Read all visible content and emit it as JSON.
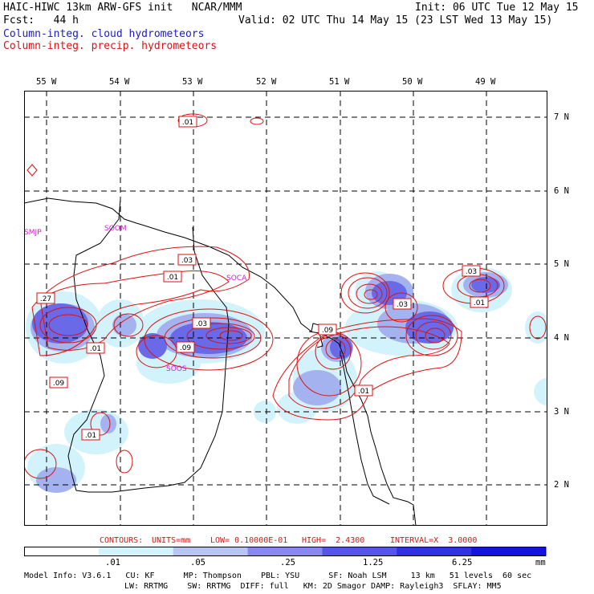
{
  "header": {
    "title_left": "HAIC-HIWC 13km ARW-GFS init   NCAR/MMM",
    "init": "Init: 06 UTC Tue 12 May 15",
    "fcst": "Fcst:   44 h",
    "valid": "Valid: 02 UTC Thu 14 May 15 (23 LST Wed 13 May 15)",
    "field_cloud": "Column-integ. cloud hydrometeors",
    "field_precip": "Column-integ. precip. hydrometeors"
  },
  "map": {
    "lon_labels": [
      "55 W",
      "54 W",
      "53 W",
      "52 W",
      "51 W",
      "50 W",
      "49 W"
    ],
    "lat_labels": [
      "7 N",
      "6 N",
      "5 N",
      "4 N",
      "3 N",
      "2 N"
    ],
    "stations": [
      "SMJP",
      "SOOM",
      "SOCA",
      "SOOS"
    ],
    "contour_labels": [
      ".01",
      ".03",
      ".01",
      ".27",
      ".03",
      ".09",
      ".01",
      ".09",
      ".01",
      ".09",
      ".03",
      ".01",
      ".03",
      ".01",
      ".01"
    ]
  },
  "contour_info": {
    "contours": "CONTOURS:",
    "units": "UNITS=mm",
    "low": "LOW= 0.10000E-01",
    "high": "HIGH=  2.4300",
    "interval": "INTERVAL=X  3.0000"
  },
  "colorbar": {
    "ticks": [
      ".01",
      ".05",
      ".25",
      "1.25",
      "6.25"
    ],
    "unit": "mm",
    "colors": [
      "#ffffff",
      "#d2f3fb",
      "#b8c4f2",
      "#8888ee",
      "#5555e8",
      "#3030e4",
      "#1414e0"
    ]
  },
  "model_info": {
    "line1": "Model Info: V3.6.1   CU: KF      MP: Thompson    PBL: YSU      SF: Noah LSM     13 km   51 levels  60 sec",
    "line2": "LW: RRTMG    SW: RRTMG  DIFF: full   KM: 2D Smagor DAMP: Rayleigh3  SFLAY: MM5"
  }
}
